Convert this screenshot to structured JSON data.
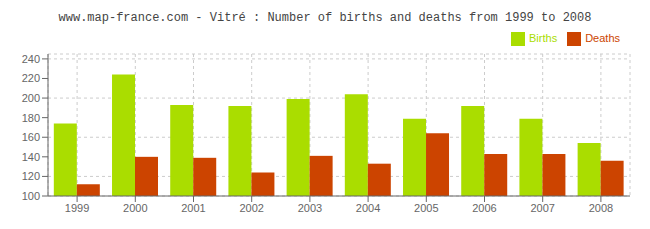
{
  "chart_data": {
    "type": "bar",
    "title": "www.map-france.com - Vitré : Number of births and deaths from 1999 to 2008",
    "categories": [
      "1999",
      "2000",
      "2001",
      "2002",
      "2003",
      "2004",
      "2005",
      "2006",
      "2007",
      "2008"
    ],
    "series": [
      {
        "name": "Births",
        "color": "#aadd00",
        "values": [
          174,
          224,
          193,
          192,
          199,
          204,
          179,
          192,
          179,
          154
        ]
      },
      {
        "name": "Deaths",
        "color": "#cc4400",
        "values": [
          112,
          140,
          139,
          124,
          141,
          133,
          164,
          143,
          143,
          136
        ]
      }
    ],
    "ylim": [
      100,
      245
    ],
    "yticks": [
      100,
      120,
      140,
      160,
      180,
      200,
      220,
      240
    ],
    "grid": true,
    "legend": "upper right"
  }
}
